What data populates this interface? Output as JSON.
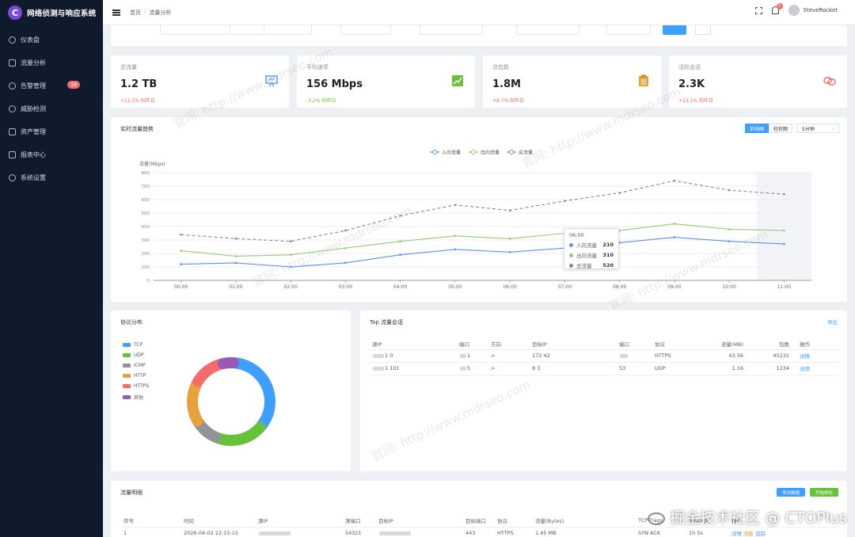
{
  "app": {
    "title": "网络侦测与响应系统",
    "logo_letter": "C"
  },
  "sidebar": {
    "items": [
      {
        "label": "仪表盘",
        "icon": "gauge-icon"
      },
      {
        "label": "流量分析",
        "icon": "cart-icon"
      },
      {
        "label": "告警管理",
        "icon": "alert-icon",
        "badge": "38"
      },
      {
        "label": "威胁检测",
        "icon": "search-icon"
      },
      {
        "label": "资产管理",
        "icon": "monitor-icon"
      },
      {
        "label": "报表中心",
        "icon": "document-icon"
      },
      {
        "label": "系统设置",
        "icon": "gear-icon"
      }
    ]
  },
  "header": {
    "breadcrumb": [
      "首页",
      "流量分析"
    ],
    "notification_count": "1",
    "username": "SteveRocket"
  },
  "stats": [
    {
      "label": "总流量",
      "value": "1.2 TB",
      "trend": "+12.5% 较昨日",
      "icon": "presentation-icon",
      "color": "#409eff"
    },
    {
      "label": "平均速率",
      "value": "156 Mbps",
      "trend": "-3.2% 较昨日",
      "icon": "trend-chart-icon",
      "color": "#67c23a"
    },
    {
      "label": "总包数",
      "value": "1.8M",
      "trend": "+8.7% 较昨日",
      "icon": "clipboard-icon",
      "color": "#e6a23c"
    },
    {
      "label": "活跃会话",
      "value": "2.3K",
      "trend": "+23.1% 较昨日",
      "icon": "link-icon",
      "color": "#f56c6c"
    }
  ],
  "traffic_chart": {
    "title": "实时流量趋势",
    "toggle": [
      "折线图",
      "柱状图"
    ],
    "interval": "5分钟",
    "tooltip": {
      "title": "06:00",
      "rows": [
        {
          "name": "入向流量",
          "value": "210"
        },
        {
          "name": "出向流量",
          "value": "310"
        },
        {
          "name": "总流量",
          "value": "520"
        }
      ]
    }
  },
  "chart_data": {
    "type": "line",
    "ylabel": "流量(Mbps)",
    "ylim": [
      0,
      800
    ],
    "yticks": [
      "0",
      "100",
      "200",
      "300",
      "400",
      "500",
      "600",
      "700",
      "800"
    ],
    "x": [
      "00:00",
      "01:00",
      "02:00",
      "03:00",
      "04:00",
      "05:00",
      "06:00",
      "07:00",
      "08:00",
      "09:00",
      "10:00",
      "11:00"
    ],
    "legend_position": "top",
    "series": [
      {
        "name": "入向流量",
        "color": "#5b8ff9",
        "values": [
          120,
          130,
          100,
          130,
          190,
          230,
          210,
          240,
          280,
          320,
          290,
          270
        ]
      },
      {
        "name": "出向流量",
        "color": "#91cc75",
        "values": [
          220,
          180,
          190,
          240,
          290,
          330,
          310,
          350,
          370,
          420,
          380,
          370
        ]
      },
      {
        "name": "总流量",
        "color": "#888888",
        "dashed": true,
        "values": [
          340,
          310,
          290,
          370,
          480,
          560,
          520,
          590,
          650,
          740,
          670,
          640
        ]
      }
    ]
  },
  "protocol": {
    "title": "协议分布",
    "items": [
      {
        "name": "TCP",
        "color": "#409eff",
        "value": 35
      },
      {
        "name": "UDP",
        "color": "#67c23a",
        "value": 20
      },
      {
        "name": "ICMP",
        "color": "#909399",
        "value": 10
      },
      {
        "name": "HTTP",
        "color": "#e6a23c",
        "value": 17
      },
      {
        "name": "HTTPS",
        "color": "#f56c6c",
        "value": 13
      },
      {
        "name": "其他",
        "color": "#9b59b6",
        "value": 5
      }
    ]
  },
  "top_flows": {
    "title": "Top 流量会话",
    "export": "导出",
    "columns": [
      "源IP",
      "端口",
      "方向",
      "目标IP",
      "端口",
      "协议",
      "流量(MB)",
      "包数",
      "操作"
    ],
    "rows": [
      {
        "src": "1 0",
        "sport": "1",
        "dir": ">",
        "dst": "172 42",
        "dport": "",
        "proto": "HTTPS",
        "mb": "43.56",
        "pkts": "45231",
        "action": "详情"
      },
      {
        "src": "1 101",
        "sport": "5",
        "dir": ">",
        "dst": "8 3",
        "dport": "53",
        "proto": "UDP",
        "mb": "1.16",
        "pkts": "1234",
        "action": "详情"
      }
    ]
  },
  "detail": {
    "title": "流量明细",
    "btn_export": "导出数据",
    "btn_capture": "开始抓包",
    "columns": [
      "序号",
      "时间",
      "源IP",
      "源端口",
      "目标IP",
      "目标端口",
      "协议",
      "流量(Bytes)",
      "TCP Flags",
      "持续时间",
      "操作"
    ],
    "row": {
      "index": "1",
      "time": "2026-04-02 22:15:15",
      "sport": "54321",
      "dport": "443",
      "proto": "HTTPS",
      "bytes": "1.45 MB",
      "flags": "SYN ACK",
      "duration": "1h 5s",
      "actions": [
        "详情",
        "阻断",
        "追踪"
      ]
    }
  },
  "watermark": {
    "corner": "掘金技术社区 @ CTOPlus",
    "diagonal": "官网: http://www.mdrseo.com"
  }
}
